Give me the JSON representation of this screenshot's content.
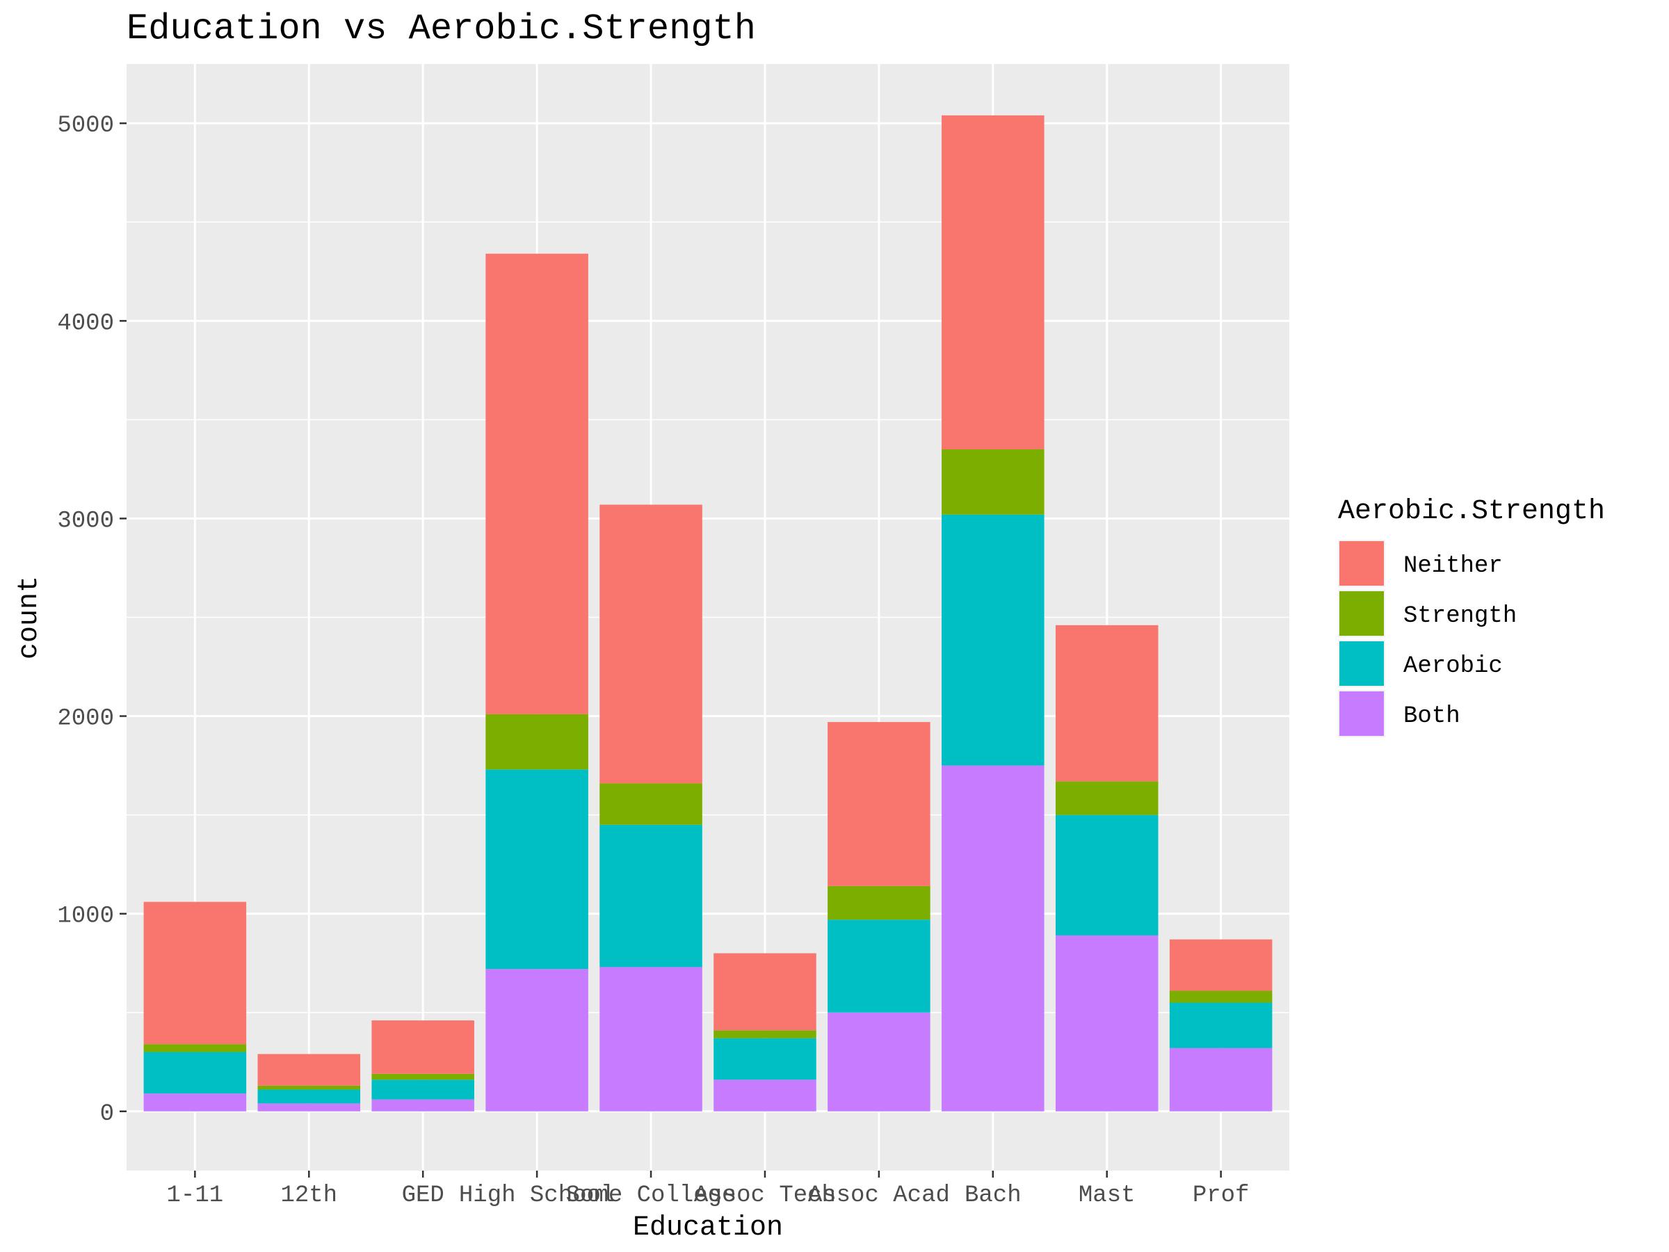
{
  "chart_data": {
    "type": "bar",
    "stacked": true,
    "title": "Education vs Aerobic.Strength",
    "xlabel": "Education",
    "ylabel": "count",
    "ylim": [
      -300,
      5300
    ],
    "yticks": [
      0,
      1000,
      2000,
      3000,
      4000,
      5000
    ],
    "grid": true,
    "legend": {
      "title": "Aerobic.Strength",
      "placement": "right",
      "entries": [
        "Neither",
        "Strength",
        "Aerobic",
        "Both"
      ]
    },
    "categories": [
      "1-11",
      "12th",
      "GED",
      "High School",
      "Some College",
      "Assoc Tech",
      "Assoc Acad",
      "Bach",
      "Mast",
      "Prof"
    ],
    "series": [
      {
        "name": "Both",
        "color": "#C77CFF",
        "values": [
          90,
          40,
          60,
          720,
          730,
          160,
          500,
          1750,
          890,
          320
        ]
      },
      {
        "name": "Aerobic",
        "color": "#00BFC4",
        "values": [
          210,
          70,
          100,
          1010,
          720,
          210,
          470,
          1270,
          610,
          230
        ]
      },
      {
        "name": "Strength",
        "color": "#7CAE00",
        "values": [
          40,
          20,
          30,
          280,
          210,
          40,
          170,
          330,
          170,
          60
        ]
      },
      {
        "name": "Neither",
        "color": "#F8766D",
        "values": [
          720,
          160,
          270,
          2330,
          1410,
          390,
          830,
          1690,
          790,
          260
        ]
      }
    ]
  }
}
